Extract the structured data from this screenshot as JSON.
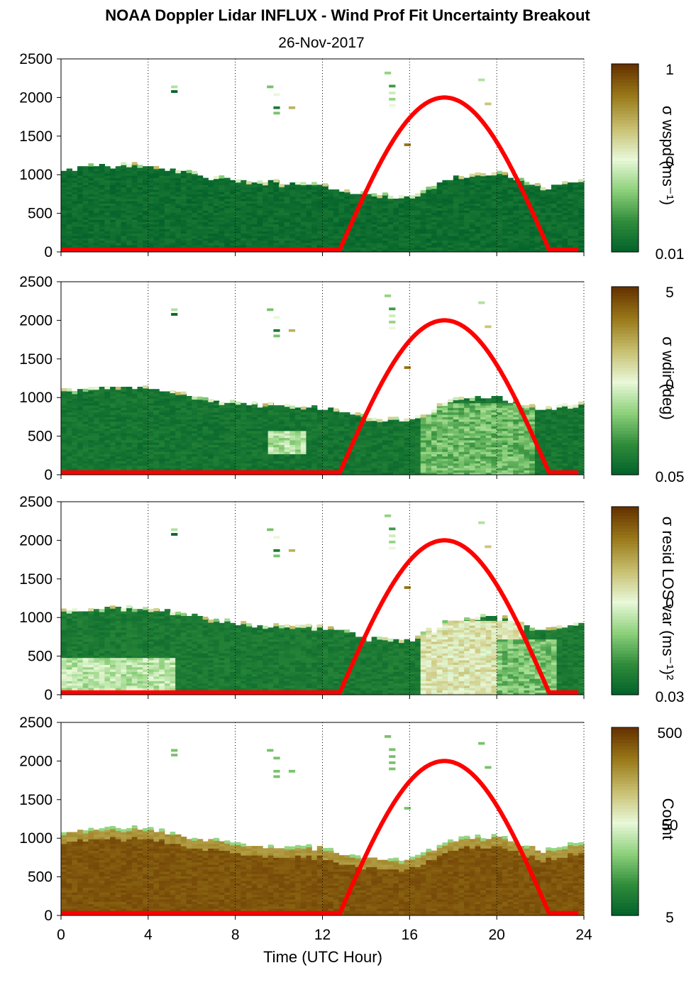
{
  "figure": {
    "title": "NOAA Doppler Lidar INFLUX - Wind Prof Fit Uncertainty Breakout",
    "subtitle": "26-Nov-2017",
    "xlabel": "Time (UTC Hour)"
  },
  "colors": {
    "curve": "#ff0000",
    "cmap": [
      "#00602a",
      "#2e8b3a",
      "#8cd07a",
      "#e8f8d8",
      "#c8bf70",
      "#9a7a1a",
      "#663300"
    ]
  },
  "chart_data": [
    {
      "type": "heatmap",
      "panel": "sigma_wspd",
      "cbar_label": "σ wspd (ms⁻¹)",
      "cbar_ticks": [
        "1",
        "0",
        "0.01"
      ],
      "cbar_scale": "log",
      "xlim": [
        0,
        24
      ],
      "ylim": [
        0,
        2500
      ],
      "xticks": [
        "0",
        "4",
        "8",
        "12",
        "16",
        "20",
        "24"
      ],
      "yticks": [
        "0",
        "500",
        "1000",
        "1500",
        "2000",
        "2500"
      ],
      "grid_x": [
        4,
        8,
        12,
        16,
        20,
        24
      ],
      "grid": "dotted vertical",
      "column_tops_km": [
        {
          "h": 0,
          "top": 1050
        },
        {
          "h": 2,
          "top": 1100
        },
        {
          "h": 4,
          "top": 1100
        },
        {
          "h": 6,
          "top": 1000
        },
        {
          "h": 8,
          "top": 900
        },
        {
          "h": 10,
          "top": 870
        },
        {
          "h": 12,
          "top": 850
        },
        {
          "h": 14,
          "top": 720
        },
        {
          "h": 16,
          "top": 680
        },
        {
          "h": 18,
          "top": 950
        },
        {
          "h": 20,
          "top": 1000
        },
        {
          "h": 22,
          "top": 820
        },
        {
          "h": 23.8,
          "top": 900
        }
      ],
      "background_level": 0.05,
      "anomalies": []
    },
    {
      "type": "heatmap",
      "panel": "sigma_wdir",
      "cbar_label": "σ wdir (deg)",
      "cbar_ticks": [
        "5",
        "0",
        "0.05"
      ],
      "cbar_scale": "log",
      "xlim": [
        0,
        24
      ],
      "ylim": [
        0,
        2500
      ],
      "xticks": [
        "0",
        "4",
        "8",
        "12",
        "16",
        "20",
        "24"
      ],
      "yticks": [
        "0",
        "500",
        "1000",
        "1500",
        "2000",
        "2500"
      ],
      "grid_x": [
        4,
        8,
        12,
        16,
        20,
        24
      ],
      "background_level": 0.08,
      "anomalies": [
        {
          "x": [
            9.5,
            11
          ],
          "y": [
            250,
            550
          ],
          "level": 0.4
        },
        {
          "x": [
            16.5,
            21.5
          ],
          "y": [
            0,
            900
          ],
          "level": 0.28
        }
      ]
    },
    {
      "type": "heatmap",
      "panel": "sigma_resid_los",
      "cbar_label": "σ resid LOS var (ms⁻¹)²",
      "cbar_ticks": [
        "0",
        "0.03"
      ],
      "cbar_scale": "log",
      "xlim": [
        0,
        24
      ],
      "ylim": [
        0,
        2500
      ],
      "xticks": [
        "0",
        "4",
        "8",
        "12",
        "16",
        "20",
        "24"
      ],
      "yticks": [
        "0",
        "500",
        "1000",
        "1500",
        "2000",
        "2500"
      ],
      "grid_x": [
        4,
        8,
        12,
        16,
        20,
        24
      ],
      "background_level": 0.1,
      "anomalies": [
        {
          "x": [
            0,
            5
          ],
          "y": [
            0,
            450
          ],
          "level": 0.42
        },
        {
          "x": [
            16.5,
            21
          ],
          "y": [
            0,
            950
          ],
          "level": 0.55
        },
        {
          "x": [
            20,
            22.5
          ],
          "y": [
            0,
            700
          ],
          "level": 0.3
        }
      ]
    },
    {
      "type": "heatmap",
      "panel": "count",
      "cbar_label": "Count",
      "cbar_ticks": [
        "500",
        "50",
        "5"
      ],
      "cbar_scale": "log",
      "xlim": [
        0,
        24
      ],
      "ylim": [
        0,
        2500
      ],
      "xticks": [
        "0",
        "4",
        "8",
        "12",
        "16",
        "20",
        "24"
      ],
      "yticks": [
        "0",
        "500",
        "1000",
        "1500",
        "2000",
        "2500"
      ],
      "grid_x": [
        4,
        8,
        12,
        16,
        20,
        24
      ],
      "background_level": 0.95,
      "anomalies": []
    }
  ],
  "solar_curve": {
    "description_series": "solar elevation overlay",
    "rise_h": 12.8,
    "set_h": 22.4,
    "peak_h": 17.5,
    "peak_m": 2000,
    "base_m": 30
  },
  "isolated_blobs": [
    {
      "x": 5.2,
      "y": 2060,
      "l": 0.02
    },
    {
      "x": 5.2,
      "y": 2120,
      "l": 0.4
    },
    {
      "x": 9.6,
      "y": 2120,
      "l": 0.3
    },
    {
      "x": 9.9,
      "y": 2020,
      "l": 0.5
    },
    {
      "x": 9.9,
      "y": 1850,
      "l": 0.1
    },
    {
      "x": 9.9,
      "y": 1780,
      "l": 0.3
    },
    {
      "x": 10.6,
      "y": 1850,
      "l": 0.7
    },
    {
      "x": 15.0,
      "y": 2300,
      "l": 0.35
    },
    {
      "x": 15.2,
      "y": 2130,
      "l": 0.2
    },
    {
      "x": 15.2,
      "y": 2040,
      "l": 0.45
    },
    {
      "x": 15.2,
      "y": 1960,
      "l": 0.35
    },
    {
      "x": 15.2,
      "y": 1880,
      "l": 0.5
    },
    {
      "x": 15.9,
      "y": 1370,
      "l": 0.85
    },
    {
      "x": 19.3,
      "y": 2210,
      "l": 0.4
    },
    {
      "x": 19.6,
      "y": 1900,
      "l": 0.65
    }
  ]
}
